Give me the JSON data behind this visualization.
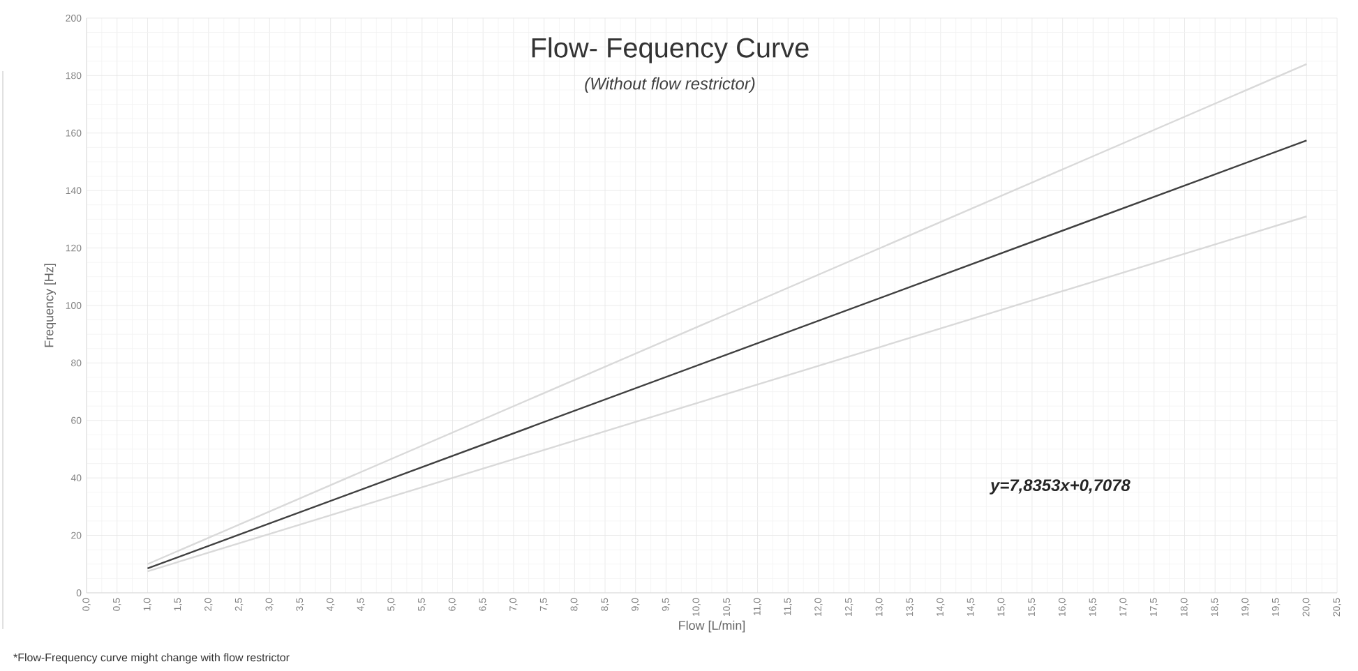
{
  "chart_data": {
    "type": "line",
    "title": "Flow- Fequency Curve",
    "subtitle": "(Without flow restrictor)",
    "xlabel": "Flow [L/min]",
    "ylabel": "Frequency [Hz]",
    "annotations": [
      "y=7,8353x+0,7078",
      "*Flow-Frequency curve might change with flow restrictor"
    ],
    "x": [
      1,
      20
    ],
    "series": [
      {
        "color": "#d9d9d9",
        "values": [
          10,
          184
        ]
      },
      {
        "color": "#404040",
        "values": [
          8.5,
          157.4
        ]
      },
      {
        "color": "#d9d9d9",
        "values": [
          7.5,
          131
        ]
      }
    ],
    "xlim": [
      0,
      20.5
    ],
    "xticks": [
      {
        "value": 0,
        "label": "0,0"
      },
      {
        "value": 0.5,
        "label": "0,5"
      },
      {
        "value": 1,
        "label": "1,0"
      },
      {
        "value": 1.5,
        "label": "1,5"
      },
      {
        "value": 2,
        "label": "2,0"
      },
      {
        "value": 2.5,
        "label": "2,5"
      },
      {
        "value": 3,
        "label": "3,0"
      },
      {
        "value": 3.5,
        "label": "3,5"
      },
      {
        "value": 4,
        "label": "4,0"
      },
      {
        "value": 4.5,
        "label": "4,5"
      },
      {
        "value": 5,
        "label": "5,0"
      },
      {
        "value": 5.5,
        "label": "5,5"
      },
      {
        "value": 6,
        "label": "6,0"
      },
      {
        "value": 6.5,
        "label": "6,5"
      },
      {
        "value": 7,
        "label": "7,0"
      },
      {
        "value": 7.5,
        "label": "7,5"
      },
      {
        "value": 8,
        "label": "8,0"
      },
      {
        "value": 8.5,
        "label": "8,5"
      },
      {
        "value": 9,
        "label": "9,0"
      },
      {
        "value": 9.5,
        "label": "9,5"
      },
      {
        "value": 10,
        "label": "10,0"
      },
      {
        "value": 10.5,
        "label": "10,5"
      },
      {
        "value": 11,
        "label": "11,0"
      },
      {
        "value": 11.5,
        "label": "11,5"
      },
      {
        "value": 12,
        "label": "12,0"
      },
      {
        "value": 12.5,
        "label": "12,5"
      },
      {
        "value": 13,
        "label": "13,0"
      },
      {
        "value": 13.5,
        "label": "13,5"
      },
      {
        "value": 14,
        "label": "14,0"
      },
      {
        "value": 14.5,
        "label": "14,5"
      },
      {
        "value": 15,
        "label": "15,0"
      },
      {
        "value": 15.5,
        "label": "15,5"
      },
      {
        "value": 16,
        "label": "16,0"
      },
      {
        "value": 16.5,
        "label": "16,5"
      },
      {
        "value": 17,
        "label": "17,0"
      },
      {
        "value": 17.5,
        "label": "17,5"
      },
      {
        "value": 18,
        "label": "18,0"
      },
      {
        "value": 18.5,
        "label": "18,5"
      },
      {
        "value": 19,
        "label": "19,0"
      },
      {
        "value": 19.5,
        "label": "19,5"
      },
      {
        "value": 20,
        "label": "20,0"
      },
      {
        "value": 20.5,
        "label": "20,5"
      }
    ],
    "ylim": [
      0,
      200
    ],
    "yticks": [
      0,
      20,
      40,
      60,
      80,
      100,
      120,
      140,
      160,
      180,
      200
    ],
    "grid": true,
    "marker": "none",
    "line_style": "solid",
    "legend": false
  }
}
